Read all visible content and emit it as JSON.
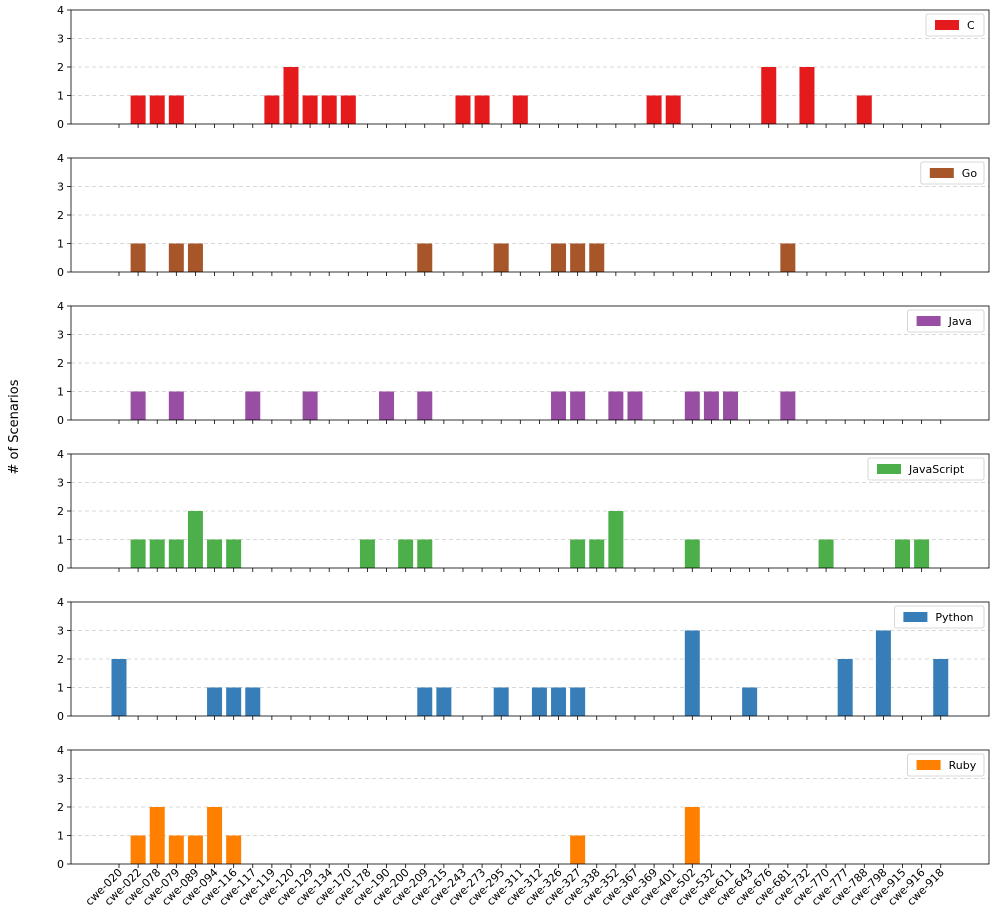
{
  "chart_data": {
    "type": "bar",
    "layout": "stacked-subplots",
    "ylabel": "# of Scenarios",
    "ylim": [
      0,
      4
    ],
    "yticks": [
      0,
      1,
      2,
      3,
      4
    ],
    "grid": "horizontal-dashed",
    "legend_position": "top-right",
    "categories": [
      "cwe-020",
      "cwe-022",
      "cwe-078",
      "cwe-079",
      "cwe-089",
      "cwe-094",
      "cwe-116",
      "cwe-117",
      "cwe-119",
      "cwe-120",
      "cwe-129",
      "cwe-134",
      "cwe-170",
      "cwe-178",
      "cwe-190",
      "cwe-200",
      "cwe-209",
      "cwe-215",
      "cwe-243",
      "cwe-273",
      "cwe-295",
      "cwe-311",
      "cwe-312",
      "cwe-326",
      "cwe-327",
      "cwe-338",
      "cwe-352",
      "cwe-367",
      "cwe-369",
      "cwe-401",
      "cwe-502",
      "cwe-532",
      "cwe-611",
      "cwe-643",
      "cwe-676",
      "cwe-681",
      "cwe-732",
      "cwe-770",
      "cwe-777",
      "cwe-788",
      "cwe-798",
      "cwe-915",
      "cwe-916",
      "cwe-918"
    ],
    "series": [
      {
        "name": "C",
        "color": "#e41a1c",
        "values": [
          0,
          1,
          1,
          1,
          0,
          0,
          0,
          0,
          1,
          2,
          1,
          1,
          1,
          0,
          0,
          0,
          0,
          0,
          1,
          1,
          0,
          1,
          0,
          0,
          0,
          0,
          0,
          0,
          1,
          1,
          0,
          0,
          0,
          0,
          2,
          0,
          2,
          0,
          0,
          1,
          0,
          0,
          0,
          0
        ]
      },
      {
        "name": "Go",
        "color": "#a65628",
        "values": [
          0,
          1,
          0,
          1,
          1,
          0,
          0,
          0,
          0,
          0,
          0,
          0,
          0,
          0,
          0,
          0,
          1,
          0,
          0,
          0,
          1,
          0,
          0,
          1,
          1,
          1,
          0,
          0,
          0,
          0,
          0,
          0,
          0,
          0,
          0,
          1,
          0,
          0,
          0,
          0,
          0,
          0,
          0,
          0
        ]
      },
      {
        "name": "Java",
        "color": "#984ea3",
        "values": [
          0,
          1,
          0,
          1,
          0,
          0,
          0,
          1,
          0,
          0,
          1,
          0,
          0,
          0,
          1,
          0,
          1,
          0,
          0,
          0,
          0,
          0,
          0,
          1,
          1,
          0,
          1,
          1,
          0,
          0,
          1,
          1,
          1,
          0,
          0,
          1,
          0,
          0,
          0,
          0,
          0,
          0,
          0,
          0
        ]
      },
      {
        "name": "JavaScript",
        "color": "#4daf4a",
        "values": [
          0,
          1,
          1,
          1,
          2,
          1,
          1,
          0,
          0,
          0,
          0,
          0,
          0,
          1,
          0,
          1,
          1,
          0,
          0,
          0,
          0,
          0,
          0,
          0,
          1,
          1,
          2,
          0,
          0,
          0,
          1,
          0,
          0,
          0,
          0,
          0,
          0,
          1,
          0,
          0,
          0,
          1,
          1,
          0
        ]
      },
      {
        "name": "Python",
        "color": "#377eb8",
        "values": [
          2,
          0,
          0,
          0,
          0,
          1,
          1,
          1,
          0,
          0,
          0,
          0,
          0,
          0,
          0,
          0,
          1,
          1,
          0,
          0,
          1,
          0,
          1,
          1,
          1,
          0,
          0,
          0,
          0,
          0,
          3,
          0,
          0,
          1,
          0,
          0,
          0,
          0,
          2,
          0,
          3,
          0,
          0,
          2
        ]
      },
      {
        "name": "Ruby",
        "color": "#ff7f00",
        "values": [
          0,
          1,
          2,
          1,
          1,
          2,
          1,
          0,
          0,
          0,
          0,
          0,
          0,
          0,
          0,
          0,
          0,
          0,
          0,
          0,
          0,
          0,
          0,
          0,
          1,
          0,
          0,
          0,
          0,
          0,
          2,
          0,
          0,
          0,
          0,
          0,
          0,
          0,
          0,
          0,
          0,
          0,
          0,
          0
        ]
      }
    ]
  }
}
